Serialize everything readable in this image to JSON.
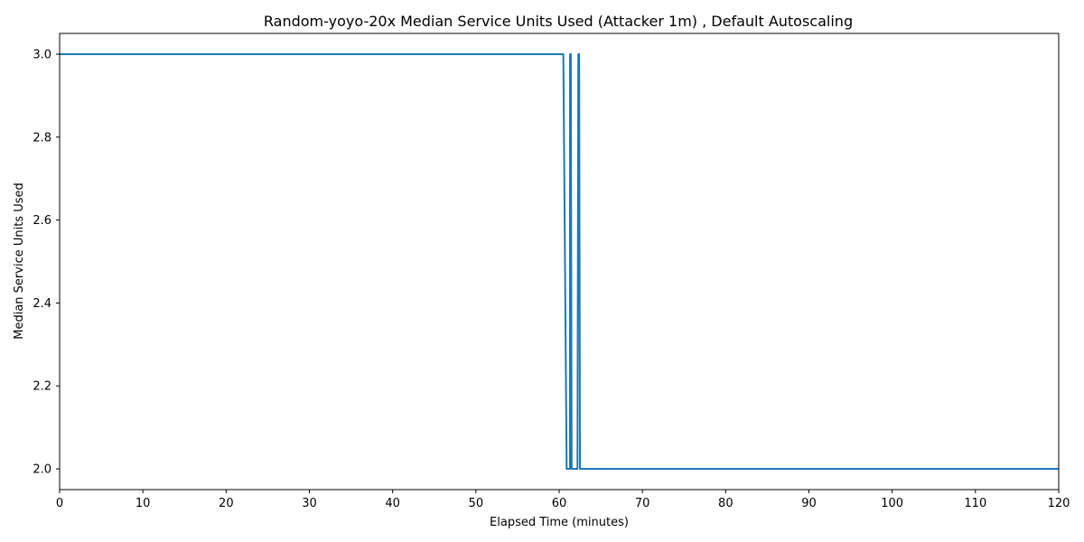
{
  "chart_data": {
    "type": "line",
    "title": "Random-yoyo-20x Median Service Units Used (Attacker 1m) , Default Autoscaling",
    "xlabel": "Elapsed Time (minutes)",
    "ylabel": "Median Service Units Used",
    "xlim": [
      0,
      120
    ],
    "ylim": [
      1.95,
      3.05
    ],
    "xticks": [
      0,
      10,
      20,
      30,
      40,
      50,
      60,
      70,
      80,
      90,
      100,
      110,
      120
    ],
    "yticks": [
      2.0,
      2.2,
      2.4,
      2.6,
      2.8,
      3.0
    ],
    "ytick_labels": [
      "2.0",
      "2.2",
      "2.4",
      "2.6",
      "2.8",
      "3.0"
    ],
    "grid": false,
    "series": [
      {
        "name": "Median Service Units Used",
        "color": "#1f77b4",
        "x": [
          0,
          60.5,
          60.5,
          60.9,
          61.0,
          61.3,
          61.3,
          61.4,
          61.5,
          62.2,
          62.3,
          62.4,
          62.5,
          120
        ],
        "y": [
          3.0,
          3.0,
          3.0,
          2.0,
          2.0,
          2.0,
          3.0,
          3.0,
          2.0,
          2.0,
          3.0,
          3.0,
          2.0,
          2.0
        ]
      }
    ]
  }
}
